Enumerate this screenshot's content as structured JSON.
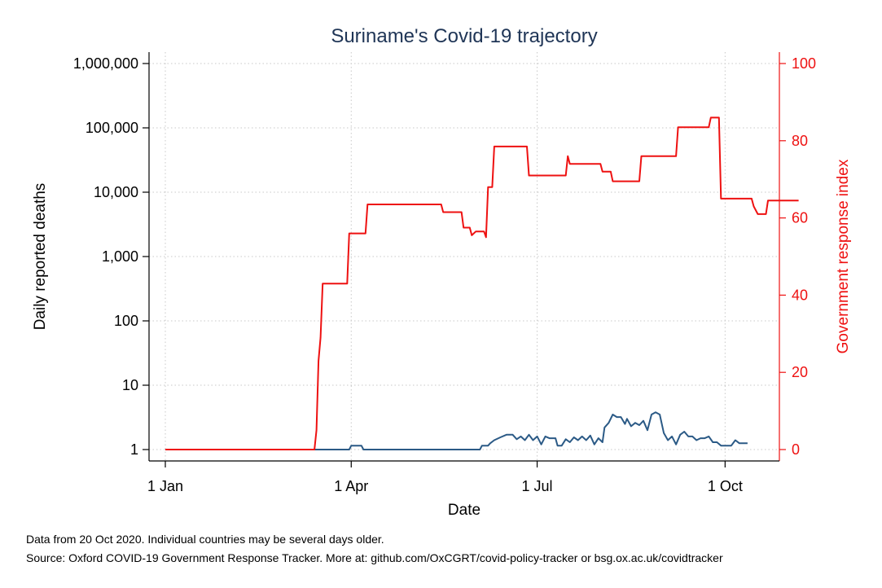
{
  "chart_data": {
    "type": "line",
    "title": "Suriname's Covid-19 trajectory",
    "xlabel": "Date",
    "ylabel_left": "Daily reported deaths",
    "ylabel_right": "Government response index",
    "x_range": [
      "2020-01-01",
      "2020-10-20"
    ],
    "x_ticks": [
      {
        "date": "2020-01-01",
        "label": "1 Jan"
      },
      {
        "date": "2020-04-01",
        "label": "1 Apr"
      },
      {
        "date": "2020-07-01",
        "label": "1 Jul"
      },
      {
        "date": "2020-10-01",
        "label": "1 Oct"
      }
    ],
    "y_left_scale": "log",
    "y_left_range": [
      1,
      1000000
    ],
    "y_left_ticks": [
      {
        "value": 1,
        "label": "1"
      },
      {
        "value": 10,
        "label": "10"
      },
      {
        "value": 100,
        "label": "100"
      },
      {
        "value": 1000,
        "label": "1,000"
      },
      {
        "value": 10000,
        "label": "10,000"
      },
      {
        "value": 100000,
        "label": "100,000"
      },
      {
        "value": 1000000,
        "label": "1,000,000"
      }
    ],
    "y_right_range": [
      0,
      100
    ],
    "y_right_ticks": [
      {
        "value": 0,
        "label": "0"
      },
      {
        "value": 20,
        "label": "20"
      },
      {
        "value": 40,
        "label": "40"
      },
      {
        "value": 60,
        "label": "60"
      },
      {
        "value": 80,
        "label": "80"
      },
      {
        "value": 100,
        "label": "100"
      }
    ],
    "grid": true,
    "series": [
      {
        "axis": "left",
        "color": "#2b5a86",
        "points": [
          [
            "2020-01-01",
            1
          ],
          [
            "2020-03-31",
            1
          ],
          [
            "2020-04-01",
            1.15
          ],
          [
            "2020-04-06",
            1.15
          ],
          [
            "2020-04-07",
            1
          ],
          [
            "2020-06-03",
            1
          ],
          [
            "2020-06-04",
            1.15
          ],
          [
            "2020-06-07",
            1.15
          ],
          [
            "2020-06-08",
            1.25
          ],
          [
            "2020-06-10",
            1.4
          ],
          [
            "2020-06-13",
            1.55
          ],
          [
            "2020-06-16",
            1.7
          ],
          [
            "2020-06-19",
            1.7
          ],
          [
            "2020-06-21",
            1.45
          ],
          [
            "2020-06-23",
            1.6
          ],
          [
            "2020-06-25",
            1.4
          ],
          [
            "2020-06-27",
            1.7
          ],
          [
            "2020-06-29",
            1.4
          ],
          [
            "2020-07-01",
            1.6
          ],
          [
            "2020-07-03",
            1.2
          ],
          [
            "2020-07-05",
            1.6
          ],
          [
            "2020-07-07",
            1.5
          ],
          [
            "2020-07-10",
            1.5
          ],
          [
            "2020-07-11",
            1.15
          ],
          [
            "2020-07-13",
            1.15
          ],
          [
            "2020-07-15",
            1.45
          ],
          [
            "2020-07-17",
            1.3
          ],
          [
            "2020-07-19",
            1.55
          ],
          [
            "2020-07-21",
            1.4
          ],
          [
            "2020-07-23",
            1.6
          ],
          [
            "2020-07-25",
            1.4
          ],
          [
            "2020-07-27",
            1.65
          ],
          [
            "2020-07-29",
            1.2
          ],
          [
            "2020-07-31",
            1.5
          ],
          [
            "2020-08-02",
            1.3
          ],
          [
            "2020-08-03",
            2.2
          ],
          [
            "2020-08-05",
            2.6
          ],
          [
            "2020-08-07",
            3.5
          ],
          [
            "2020-08-09",
            3.2
          ],
          [
            "2020-08-11",
            3.2
          ],
          [
            "2020-08-13",
            2.5
          ],
          [
            "2020-08-14",
            3.0
          ],
          [
            "2020-08-16",
            2.3
          ],
          [
            "2020-08-18",
            2.6
          ],
          [
            "2020-08-20",
            2.4
          ],
          [
            "2020-08-22",
            2.8
          ],
          [
            "2020-08-24",
            2.0
          ],
          [
            "2020-08-26",
            3.5
          ],
          [
            "2020-08-28",
            3.8
          ],
          [
            "2020-08-30",
            3.5
          ],
          [
            "2020-09-01",
            1.8
          ],
          [
            "2020-09-03",
            1.4
          ],
          [
            "2020-09-05",
            1.6
          ],
          [
            "2020-09-07",
            1.2
          ],
          [
            "2020-09-09",
            1.7
          ],
          [
            "2020-09-11",
            1.9
          ],
          [
            "2020-09-13",
            1.6
          ],
          [
            "2020-09-15",
            1.6
          ],
          [
            "2020-09-17",
            1.4
          ],
          [
            "2020-09-19",
            1.5
          ],
          [
            "2020-09-21",
            1.5
          ],
          [
            "2020-09-23",
            1.6
          ],
          [
            "2020-09-25",
            1.3
          ],
          [
            "2020-09-27",
            1.3
          ],
          [
            "2020-09-29",
            1.15
          ],
          [
            "2020-10-04",
            1.15
          ],
          [
            "2020-10-06",
            1.4
          ],
          [
            "2020-10-08",
            1.25
          ],
          [
            "2020-10-12",
            1.25
          ]
        ]
      },
      {
        "axis": "right",
        "color": "#ee1111",
        "points": [
          [
            "2020-01-01",
            0
          ],
          [
            "2020-03-14",
            0
          ],
          [
            "2020-03-15",
            5
          ],
          [
            "2020-03-16",
            23
          ],
          [
            "2020-03-17",
            29
          ],
          [
            "2020-03-18",
            43
          ],
          [
            "2020-03-30",
            43
          ],
          [
            "2020-03-31",
            56
          ],
          [
            "2020-04-08",
            56
          ],
          [
            "2020-04-09",
            63.5
          ],
          [
            "2020-05-15",
            63.5
          ],
          [
            "2020-05-16",
            61.5
          ],
          [
            "2020-05-25",
            61.5
          ],
          [
            "2020-05-26",
            57.5
          ],
          [
            "2020-05-29",
            57.5
          ],
          [
            "2020-05-30",
            55.5
          ],
          [
            "2020-06-01",
            56.5
          ],
          [
            "2020-06-05",
            56.5
          ],
          [
            "2020-06-06",
            55
          ],
          [
            "2020-06-07",
            68
          ],
          [
            "2020-06-09",
            68
          ],
          [
            "2020-06-10",
            78.5
          ],
          [
            "2020-06-26",
            78.5
          ],
          [
            "2020-06-27",
            71
          ],
          [
            "2020-07-15",
            71
          ],
          [
            "2020-07-16",
            76
          ],
          [
            "2020-07-17",
            74
          ],
          [
            "2020-08-01",
            74
          ],
          [
            "2020-08-02",
            72
          ],
          [
            "2020-08-06",
            72
          ],
          [
            "2020-08-07",
            69.5
          ],
          [
            "2020-08-20",
            69.5
          ],
          [
            "2020-08-21",
            76
          ],
          [
            "2020-09-07",
            76
          ],
          [
            "2020-09-08",
            83.5
          ],
          [
            "2020-09-23",
            83.5
          ],
          [
            "2020-09-24",
            86
          ],
          [
            "2020-09-28",
            86
          ],
          [
            "2020-09-29",
            65
          ],
          [
            "2020-10-14",
            65
          ],
          [
            "2020-10-15",
            63
          ],
          [
            "2020-10-17",
            61
          ],
          [
            "2020-10-21",
            61
          ],
          [
            "2020-10-22",
            64.5
          ],
          [
            "2020-11-06",
            64.5
          ]
        ]
      }
    ],
    "notes": [
      "Data from 20 Oct 2020. Individual countries may be several days older.",
      "Source: Oxford COVID-19 Government Response Tracker. More at: github.com/OxCGRT/covid-policy-tracker or bsg.ox.ac.uk/covidtracker"
    ]
  }
}
